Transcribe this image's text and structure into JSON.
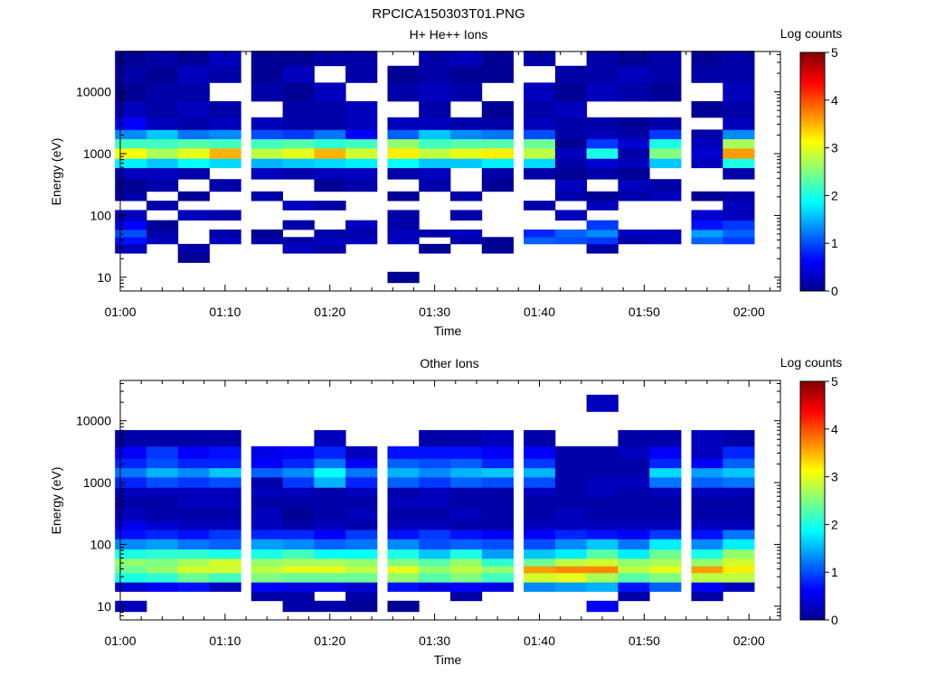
{
  "figure_title": "RPCICA150303T01.PNG",
  "chart_data": [
    {
      "type": "heatmap",
      "title": "H+ He++ Ions",
      "xlabel": "Time",
      "ylabel": "Energy (eV)",
      "x_scale": "time",
      "y_scale": "log",
      "xlim": [
        "01:00",
        "02:03"
      ],
      "ylim": [
        6,
        45000
      ],
      "x_ticks": [
        "01:00",
        "01:10",
        "01:20",
        "01:30",
        "01:40",
        "01:50",
        "02:00"
      ],
      "y_ticks": [
        {
          "value": 10,
          "label": "10"
        },
        {
          "value": 100,
          "label": "100"
        },
        {
          "value": 1000,
          "label": "1000"
        },
        {
          "value": 10000,
          "label": "10000"
        }
      ],
      "colorbar": {
        "label": "Log counts",
        "range": [
          0,
          5
        ],
        "ticks": [
          "0",
          "1",
          "2",
          "3",
          "4",
          "5"
        ],
        "colormap": "jet"
      },
      "time_bins": [
        "01:01",
        "01:04",
        "01:07",
        "01:10",
        "01:14",
        "01:17",
        "01:20",
        "01:23",
        "01:27",
        "01:30",
        "01:33",
        "01:36",
        "01:40",
        "01:43",
        "01:46",
        "01:49",
        "01:52",
        "01:56",
        "01:59"
      ],
      "energy_bins_eV": [
        10,
        15,
        20,
        30,
        40,
        50,
        70,
        100,
        150,
        200,
        300,
        500,
        700,
        1000,
        1500,
        2000,
        3000,
        5000,
        10000,
        20000,
        35000
      ],
      "log_counts": [
        [
          0,
          0,
          0,
          0.3,
          0.7,
          1.0,
          0.6,
          0.3,
          0,
          0.2,
          0.1,
          0.3,
          1.8,
          3.1,
          2.2,
          1.3,
          0.6,
          0.3,
          0.1,
          0.2,
          0.1
        ],
        [
          0,
          0,
          0,
          0,
          0.3,
          0.2,
          0.1,
          0,
          0.2,
          0,
          0.2,
          0.3,
          1.6,
          2.7,
          2.2,
          1.6,
          0.3,
          0.2,
          0.2,
          0.1,
          0.2
        ],
        [
          0,
          0,
          0.1,
          0.2,
          0,
          0,
          0,
          0.3,
          0,
          0.1,
          0,
          0.2,
          1.9,
          3.0,
          2.3,
          1.2,
          0.2,
          0.3,
          0.2,
          0.3,
          0.1
        ],
        [
          0,
          0,
          0,
          0,
          0.3,
          0.2,
          0,
          0.2,
          0,
          0,
          0.2,
          0,
          1.7,
          3.5,
          2.2,
          1.3,
          0.3,
          0.2,
          0,
          0.2,
          0.3
        ],
        [
          0,
          0,
          0,
          0,
          0.2,
          0.1,
          0,
          0,
          0,
          0.2,
          0,
          0.3,
          1.5,
          2.8,
          2.2,
          1.0,
          0.3,
          0,
          0.2,
          0.1,
          0.1
        ],
        [
          0,
          0,
          0,
          0.3,
          0.2,
          0,
          0.2,
          0,
          0.3,
          0,
          0,
          0.2,
          1.6,
          3.0,
          2.3,
          0.9,
          0.2,
          0.2,
          0.1,
          0.3,
          0.1
        ],
        [
          0,
          0,
          0,
          0.2,
          0.3,
          0.2,
          0,
          0,
          0.2,
          0,
          0.1,
          0.3,
          1.7,
          3.5,
          2.1,
          1.2,
          0.2,
          0.2,
          0.3,
          0,
          0.2
        ],
        [
          0,
          0,
          0,
          0,
          0.3,
          0.2,
          0.3,
          0,
          0,
          0,
          0.2,
          0.3,
          1.8,
          2.9,
          2.2,
          0.6,
          0.3,
          0.3,
          0,
          0.2,
          0.2
        ],
        [
          0.1,
          0,
          0,
          0,
          0.3,
          0.3,
          0.2,
          0.2,
          0,
          0.1,
          0,
          0.2,
          1.9,
          3.2,
          2.6,
          1.1,
          0.3,
          0,
          0.2,
          0.1,
          0
        ],
        [
          0,
          0,
          0,
          0.1,
          0,
          0.2,
          0,
          0,
          0,
          0,
          0.2,
          0.3,
          1.6,
          2.8,
          2.2,
          1.6,
          0.3,
          0.2,
          0.3,
          0.2,
          0.2
        ],
        [
          0,
          0,
          0,
          0,
          0.2,
          0.3,
          0,
          0.2,
          0,
          0.2,
          0,
          0,
          1.6,
          3.0,
          2.3,
          1.3,
          0.2,
          0,
          0.2,
          0.1,
          0.3
        ],
        [
          0,
          0,
          0,
          0.1,
          0.1,
          0,
          0,
          0,
          0,
          0,
          0.1,
          0.2,
          1.8,
          3.2,
          2.3,
          1.2,
          0.2,
          0.1,
          0,
          0.1,
          0.1
        ],
        [
          0,
          0,
          0,
          0,
          1.1,
          0.8,
          0,
          0,
          0.2,
          0,
          0,
          0.2,
          1.7,
          2.8,
          2.4,
          1.0,
          0.3,
          0.2,
          0.3,
          0,
          0.2
        ],
        [
          0,
          0,
          0,
          0,
          1.0,
          1.1,
          0,
          0.3,
          0,
          0.2,
          0.3,
          0.1,
          0.2,
          0.3,
          0.1,
          0.2,
          0.2,
          0.3,
          0.1,
          0.2,
          0
        ],
        [
          0,
          0,
          0,
          0.2,
          0.9,
          1.3,
          0.9,
          0,
          0.3,
          0.1,
          0,
          0.2,
          0.4,
          2.0,
          0.9,
          0.3,
          0.2,
          0,
          0.3,
          0.2,
          0.2
        ],
        [
          0,
          0,
          0,
          0,
          0.2,
          0.3,
          0,
          0,
          0,
          0.2,
          0.3,
          0.1,
          0.3,
          0.2,
          0.4,
          0.2,
          0.1,
          0,
          0.2,
          0.3,
          0.1
        ],
        [
          0,
          0,
          0,
          0,
          0.3,
          0.3,
          0,
          0,
          0,
          0.3,
          0.2,
          0,
          1.6,
          2.5,
          2.0,
          0.9,
          0.2,
          0,
          0.1,
          0.2,
          0.2
        ],
        [
          0,
          0,
          0,
          0,
          1.1,
          1.4,
          0.7,
          0.4,
          0,
          0.1,
          0,
          0,
          0.3,
          0.4,
          0.3,
          0.2,
          0,
          0.1,
          0,
          0.2,
          0.1
        ],
        [
          0,
          0,
          0,
          0,
          0.9,
          1.1,
          0.9,
          0.3,
          0.3,
          0.2,
          0,
          0.2,
          2.0,
          3.6,
          2.7,
          1.3,
          0.3,
          0.2,
          0.3,
          0.2,
          0.2
        ]
      ]
    },
    {
      "type": "heatmap",
      "title": "Other Ions",
      "xlabel": "Time",
      "ylabel": "Energy (eV)",
      "x_scale": "time",
      "y_scale": "log",
      "xlim": [
        "01:00",
        "02:03"
      ],
      "ylim": [
        6,
        45000
      ],
      "x_ticks": [
        "01:00",
        "01:10",
        "01:20",
        "01:30",
        "01:40",
        "01:50",
        "02:00"
      ],
      "y_ticks": [
        {
          "value": 10,
          "label": "10"
        },
        {
          "value": 100,
          "label": "100"
        },
        {
          "value": 1000,
          "label": "1000"
        },
        {
          "value": 10000,
          "label": "10000"
        }
      ],
      "colorbar": {
        "label": "Log counts",
        "range": [
          0,
          5
        ],
        "ticks": [
          "0",
          "1",
          "2",
          "3",
          "4",
          "5"
        ],
        "colormap": "jet"
      },
      "time_bins": [
        "01:01",
        "01:04",
        "01:07",
        "01:10",
        "01:14",
        "01:17",
        "01:20",
        "01:23",
        "01:27",
        "01:30",
        "01:33",
        "01:36",
        "01:40",
        "01:43",
        "01:46",
        "01:49",
        "01:52",
        "01:56",
        "01:59"
      ],
      "energy_bins_eV": [
        10,
        15,
        20,
        30,
        40,
        50,
        70,
        100,
        150,
        200,
        300,
        500,
        700,
        1000,
        1500,
        2000,
        3000,
        5000,
        10000,
        20000,
        35000
      ],
      "log_counts": [
        [
          0.3,
          0,
          0.4,
          2.0,
          2.4,
          2.6,
          2.0,
          1.3,
          0.7,
          0.5,
          0.3,
          0.2,
          0.3,
          0.8,
          1.2,
          0.8,
          0.6,
          0.2,
          0,
          0,
          0
        ],
        [
          0,
          0,
          0.6,
          2.1,
          2.6,
          2.5,
          2.1,
          1.4,
          0.8,
          0.4,
          0.2,
          0.2,
          0.3,
          1.0,
          1.5,
          1.0,
          0.9,
          0.2,
          0,
          0,
          0
        ],
        [
          0,
          0,
          0.7,
          2.4,
          2.9,
          2.7,
          2.1,
          1.2,
          0.7,
          0.3,
          0.2,
          0.3,
          0.3,
          0.9,
          1.3,
          0.8,
          0.6,
          0.2,
          0,
          0,
          0
        ],
        [
          0,
          0,
          0.3,
          2.2,
          2.9,
          2.9,
          2.0,
          1.1,
          0.9,
          0.3,
          0.2,
          0.3,
          0.3,
          1.0,
          1.6,
          0.8,
          0.7,
          0.2,
          0,
          0,
          0
        ],
        [
          0,
          0.2,
          0.6,
          2.5,
          2.8,
          2.6,
          2.0,
          1.4,
          0.8,
          0.3,
          0.3,
          0.2,
          0.3,
          0.2,
          1.1,
          0.6,
          0.5,
          0,
          0,
          0,
          0
        ],
        [
          0.2,
          0.2,
          0.5,
          2.4,
          3.0,
          2.7,
          2.2,
          1.3,
          0.8,
          0.2,
          0.1,
          0.2,
          0.3,
          0.9,
          1.3,
          0.8,
          0.6,
          0,
          0,
          0,
          0
        ],
        [
          0.2,
          0,
          0.5,
          2.4,
          3.0,
          2.7,
          1.9,
          1.1,
          0.6,
          0.3,
          0.2,
          0.2,
          0.2,
          1.5,
          1.9,
          1.2,
          0.8,
          0.3,
          0,
          0,
          0
        ],
        [
          0.1,
          0.2,
          0.4,
          2.4,
          2.8,
          2.6,
          1.9,
          1.2,
          0.9,
          0.2,
          0.3,
          0.2,
          0.3,
          0.8,
          1.2,
          0.6,
          0.3,
          0,
          0,
          0,
          0
        ],
        [
          0.1,
          0,
          0.7,
          2.6,
          3.0,
          2.5,
          2.0,
          1.3,
          0.7,
          0.3,
          0.2,
          0.3,
          0.2,
          1.1,
          1.5,
          1.1,
          0.7,
          0,
          0,
          0,
          0
        ],
        [
          0,
          0,
          0.5,
          2.3,
          2.6,
          2.3,
          1.6,
          1.0,
          0.9,
          0.3,
          0.2,
          0.3,
          0.3,
          0.9,
          1.3,
          1.0,
          0.7,
          0.2,
          0,
          0,
          0
        ],
        [
          0,
          0.2,
          0.6,
          2.5,
          2.8,
          2.6,
          2.0,
          1.1,
          0.7,
          0.2,
          0.3,
          0.2,
          0.2,
          1.1,
          1.5,
          1.1,
          0.7,
          0.2,
          0,
          0,
          0
        ],
        [
          0,
          0,
          0.5,
          2.2,
          2.6,
          2.1,
          1.4,
          1.0,
          0.6,
          0.2,
          0.2,
          0.2,
          0.2,
          1.0,
          1.6,
          0.8,
          0.6,
          0.3,
          0,
          0,
          0
        ],
        [
          0,
          0,
          1.3,
          2.9,
          3.6,
          2.4,
          1.6,
          1.0,
          0.6,
          0.3,
          0.2,
          0.2,
          0.3,
          1.0,
          1.5,
          0.9,
          0.6,
          0.2,
          0,
          0,
          0
        ],
        [
          0,
          0,
          1.4,
          3.0,
          3.7,
          2.8,
          1.8,
          1.3,
          0.8,
          0.3,
          0.3,
          0.2,
          0.2,
          0.2,
          0.2,
          0.2,
          0.2,
          0,
          0,
          0,
          0
        ],
        [
          0.6,
          0,
          1.5,
          2.7,
          3.7,
          2.9,
          2.3,
          1.6,
          0.7,
          0.3,
          0.2,
          0.2,
          0.3,
          0.3,
          0.2,
          0.2,
          0.2,
          0,
          0,
          0.3,
          0
        ],
        [
          0,
          0.2,
          0.7,
          2.3,
          2.8,
          2.6,
          1.8,
          1.2,
          0.6,
          0.3,
          0.2,
          0.2,
          0.2,
          0.3,
          0.2,
          0.2,
          0.3,
          0.2,
          0,
          0,
          0
        ],
        [
          0,
          0,
          1.1,
          2.5,
          3.0,
          2.7,
          2.4,
          1.8,
          0.9,
          0.3,
          0.2,
          0.2,
          0.3,
          1.2,
          1.7,
          0.8,
          0.6,
          0.2,
          0,
          0,
          0
        ],
        [
          0,
          0.2,
          0.6,
          2.8,
          3.6,
          2.6,
          2.0,
          1.3,
          0.7,
          0.3,
          0.2,
          0.2,
          0.3,
          1.1,
          1.4,
          0.6,
          0.3,
          0.3,
          0,
          0,
          0
        ],
        [
          0,
          0,
          0.3,
          2.8,
          3.2,
          2.9,
          2.6,
          1.8,
          1.2,
          0.3,
          0.2,
          0.2,
          0.3,
          1.2,
          1.6,
          1.1,
          0.8,
          0.2,
          0,
          0,
          0
        ]
      ]
    }
  ]
}
